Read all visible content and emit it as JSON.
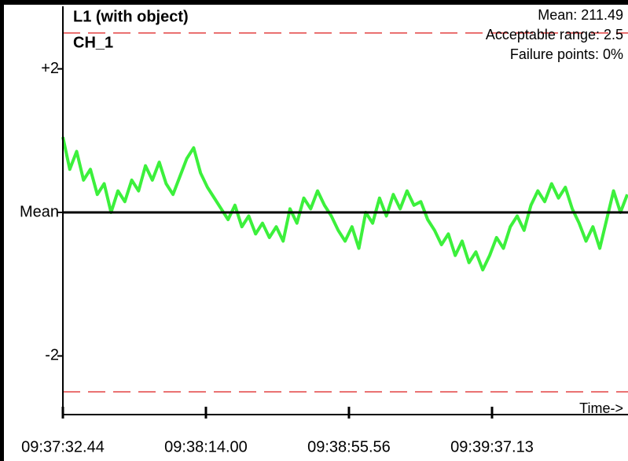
{
  "chart_data": {
    "type": "line",
    "title": "L1 (with object)",
    "subtitle": "CH_1",
    "annotations": [
      "Mean: 211.49",
      "Acceptable range: 2.5",
      "Failure points: 0%"
    ],
    "x_label": "Time->",
    "x": [
      0,
      2,
      4,
      6,
      8,
      10,
      12,
      14,
      16,
      18,
      20,
      22,
      24,
      26,
      28,
      30,
      32,
      34,
      36,
      38,
      40,
      42,
      44,
      46,
      48,
      50,
      52,
      54,
      56,
      58,
      60,
      62,
      64,
      66,
      68,
      70,
      72,
      74,
      76,
      78,
      80,
      82,
      84,
      86,
      88,
      90,
      92,
      94,
      96,
      98,
      100,
      102,
      104,
      106,
      108,
      110,
      112,
      114,
      116,
      118,
      120,
      122,
      124,
      126,
      128,
      130,
      132,
      134,
      136,
      138,
      140,
      142,
      144,
      146,
      148,
      150,
      152,
      154,
      156,
      158,
      160,
      162,
      164
    ],
    "series": [
      {
        "name": "CH_1",
        "color": "#3cf03c",
        "values": [
          1.05,
          0.6,
          0.85,
          0.45,
          0.6,
          0.25,
          0.4,
          0.0,
          0.3,
          0.15,
          0.45,
          0.3,
          0.65,
          0.45,
          0.7,
          0.4,
          0.25,
          0.5,
          0.75,
          0.9,
          0.55,
          0.35,
          0.2,
          0.05,
          -0.1,
          0.1,
          -0.2,
          -0.05,
          -0.3,
          -0.15,
          -0.35,
          -0.2,
          -0.4,
          0.05,
          -0.15,
          0.2,
          0.05,
          0.3,
          0.1,
          -0.05,
          -0.25,
          -0.4,
          -0.2,
          -0.5,
          0.0,
          -0.15,
          0.2,
          -0.05,
          0.25,
          0.05,
          0.3,
          0.1,
          0.15,
          -0.1,
          -0.25,
          -0.45,
          -0.3,
          -0.6,
          -0.4,
          -0.7,
          -0.55,
          -0.8,
          -0.6,
          -0.35,
          -0.5,
          -0.2,
          -0.05,
          -0.25,
          0.1,
          0.3,
          0.15,
          0.4,
          0.2,
          0.35,
          0.05,
          -0.15,
          -0.4,
          -0.2,
          -0.5,
          -0.1,
          0.3,
          0.0,
          0.25
        ]
      }
    ],
    "xlim": [
      0,
      164.2
    ],
    "xticks": [
      {
        "value": 0,
        "label": "09:37:32.44"
      },
      {
        "value": 41.56,
        "label": "09:38:14.00"
      },
      {
        "value": 83.12,
        "label": "09:38:55.56"
      },
      {
        "value": 124.69,
        "label": "09:39:37.13"
      }
    ],
    "ylim": [
      -2.85,
      2.85
    ],
    "yticks": [
      {
        "value": 2,
        "label": "+2"
      },
      {
        "value": 0,
        "label": "Mean"
      },
      -2
    ],
    "threshold_lines": {
      "values": [
        2.5,
        -2.5
      ],
      "color": "#e03030"
    },
    "reference_line": {
      "value": 0,
      "color": "#000000"
    }
  }
}
